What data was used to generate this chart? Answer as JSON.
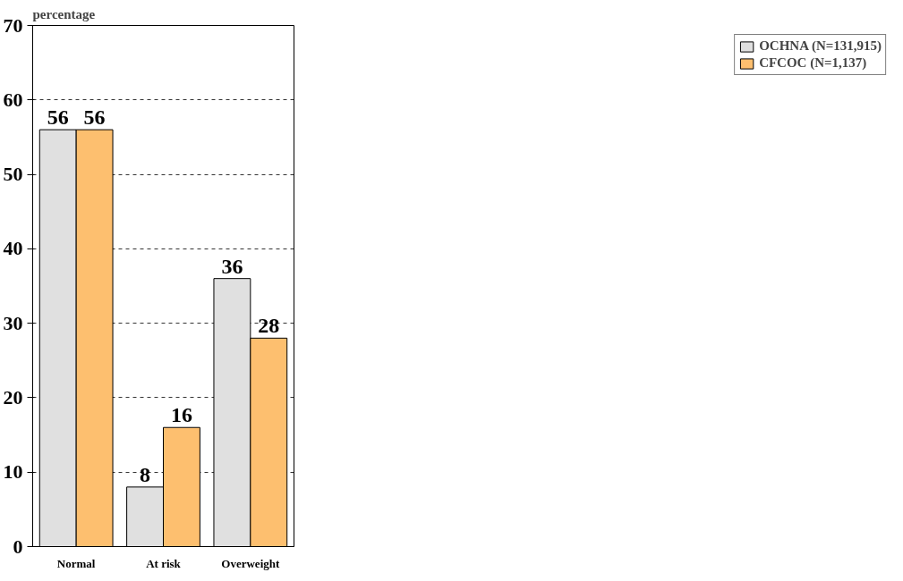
{
  "chart_data": {
    "type": "bar",
    "ylabel": "percentage",
    "categories": [
      "Normal",
      "At risk",
      "Overweight"
    ],
    "series": [
      {
        "name": "OCHNA (N=131,915)",
        "color": "#e0e0e0",
        "values": [
          56,
          8,
          36
        ]
      },
      {
        "name": "CFCOC (N=1,137)",
        "color": "#fdbf6f",
        "values": [
          56,
          16,
          28
        ]
      }
    ],
    "ylim": [
      0,
      70
    ],
    "yticks": [
      0,
      10,
      20,
      30,
      40,
      50,
      60,
      70
    ],
    "grid": "y",
    "legend": "right",
    "data_labels": true
  }
}
